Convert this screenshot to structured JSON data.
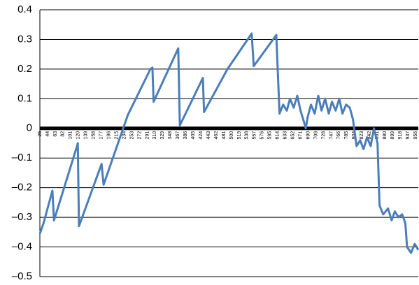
{
  "chart_data": {
    "type": "line",
    "color": "#4a7ebb",
    "x": [
      25,
      34,
      48,
      56,
      60,
      117,
      119,
      122,
      178,
      183,
      243,
      299,
      304,
      307,
      368,
      372,
      429,
      432,
      490,
      550,
      555,
      611,
      619,
      628,
      637,
      645,
      654,
      663,
      671,
      680,
      684,
      689,
      697,
      706,
      715,
      723,
      732,
      741,
      749,
      758,
      767,
      775,
      784,
      793,
      801,
      810,
      819,
      827,
      836,
      845,
      853,
      862,
      867,
      876,
      888,
      897,
      905,
      914,
      923,
      931,
      935,
      945,
      954,
      963
    ],
    "values": [
      -0.355,
      -0.32,
      -0.25,
      -0.21,
      -0.31,
      -0.06,
      -0.05,
      -0.33,
      -0.12,
      -0.19,
      0.045,
      0.2,
      0.205,
      0.09,
      0.27,
      0.01,
      0.17,
      0.055,
      0.2,
      0.32,
      0.21,
      0.315,
      0.05,
      0.08,
      0.06,
      0.1,
      0.07,
      0.11,
      0.06,
      0.02,
      0.0,
      0.04,
      0.08,
      0.05,
      0.11,
      0.06,
      0.1,
      0.05,
      0.09,
      0.06,
      0.1,
      0.05,
      0.08,
      0.07,
      0.03,
      -0.06,
      -0.04,
      -0.07,
      -0.03,
      -0.06,
      0.0,
      -0.05,
      -0.26,
      -0.29,
      -0.27,
      -0.31,
      -0.28,
      -0.3,
      -0.29,
      -0.32,
      -0.4,
      -0.42,
      -0.39,
      -0.41
    ],
    "xlim": [
      25,
      963
    ],
    "xticks": [
      25,
      44,
      63,
      82,
      101,
      120,
      139,
      158,
      177,
      196,
      215,
      234,
      253,
      272,
      291,
      310,
      329,
      348,
      367,
      386,
      405,
      424,
      443,
      462,
      481,
      500,
      519,
      538,
      557,
      576,
      595,
      614,
      633,
      652,
      671,
      690,
      709,
      728,
      747,
      766,
      785,
      804,
      823,
      842,
      861,
      880,
      899,
      918,
      937,
      956
    ],
    "ylim": [
      -0.5,
      0.4
    ],
    "yticks": [
      {
        "value": 0.4,
        "label": "0.4"
      },
      {
        "value": 0.3,
        "label": "0.3"
      },
      {
        "value": 0.2,
        "label": "0.2"
      },
      {
        "value": 0.1,
        "label": "0.1"
      },
      0,
      {
        "value": -0.1,
        "label": "–0.1"
      },
      {
        "value": -0.2,
        "label": "–0.2"
      },
      {
        "value": -0.3,
        "label": "–0.3"
      },
      {
        "value": -0.4,
        "label": "–0.4"
      },
      {
        "value": -0.5,
        "label": "–0.5"
      }
    ],
    "grid": true
  }
}
